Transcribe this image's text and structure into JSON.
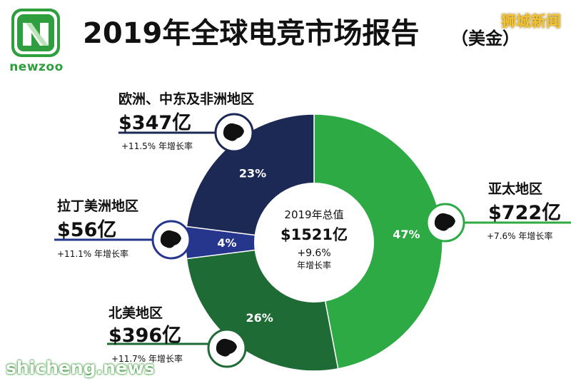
{
  "brand": {
    "name": "newzoo",
    "color": "#2f9e3e"
  },
  "title": "2019年全球电竞市场报告",
  "title_suffix": "（美金）",
  "watermark_top": "狮城新闻",
  "watermark_bottom": "shicheng.news",
  "center": {
    "label": "2019年总值",
    "value": "$1521亿",
    "growth": "+9.6%",
    "growth_label": "年增长率"
  },
  "regions": [
    {
      "name": "亚太地区",
      "value": "$722亿",
      "growth": "+7.6% 年增长率",
      "share_label": "47%",
      "icon": "asia-pacific-map-icon"
    },
    {
      "name": "北美地区",
      "value": "$396亿",
      "growth": "+11.7% 年增长率",
      "share_label": "26%",
      "icon": "north-america-map-icon"
    },
    {
      "name": "拉丁美洲地区",
      "value": "$56亿",
      "growth": "+11.1% 年增长率",
      "share_label": "4%",
      "icon": "latin-america-map-icon"
    },
    {
      "name": "欧洲、中东及非洲地区",
      "value": "$347亿",
      "growth": "+11.5% 年增长率",
      "share_label": "23%",
      "icon": "europe-africa-map-icon"
    }
  ],
  "chart_data": {
    "type": "pie",
    "title": "2019年全球电竞市场报告",
    "center_label": "2019年总值 $1521亿",
    "categories": [
      "亚太地区",
      "北美地区",
      "拉丁美洲地区",
      "欧洲、中东及非洲地区"
    ],
    "values": [
      47,
      26,
      4,
      23
    ],
    "amounts": [
      722,
      396,
      56,
      347
    ],
    "total": 1521,
    "growth_rates": [
      7.6,
      11.7,
      11.1,
      11.5
    ],
    "colors": [
      "#2eaa45",
      "#1e6b36",
      "#26368c",
      "#1c2954"
    ],
    "style": "donut"
  }
}
